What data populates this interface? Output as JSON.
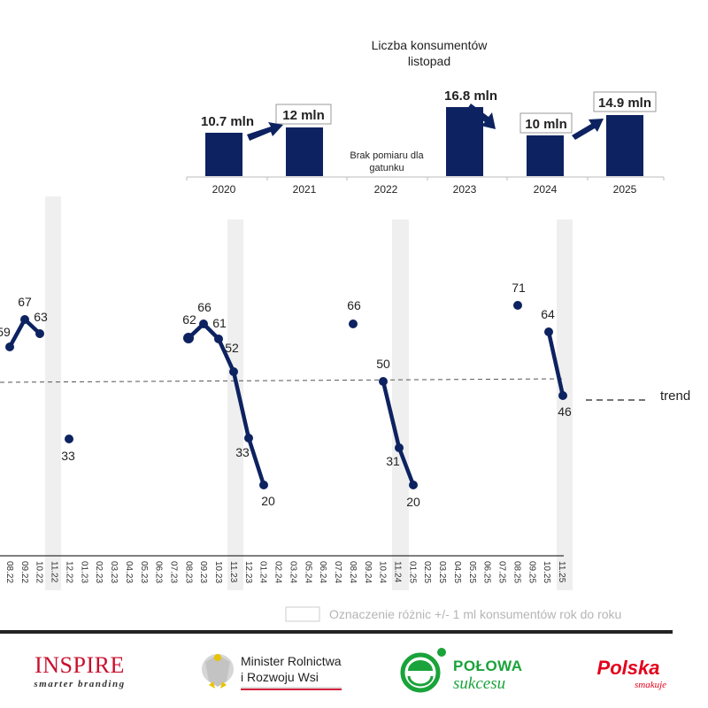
{
  "chart_data": [
    {
      "type": "bar",
      "title": "Liczba konsumentów",
      "subtitle": "listopad",
      "categories": [
        "2020",
        "2021",
        "2022",
        "2023",
        "2024",
        "2025"
      ],
      "values": [
        10.7,
        12,
        null,
        16.8,
        10,
        14.9
      ],
      "value_labels": [
        "10.7 mln",
        "12 mln",
        "",
        "16.8 mln",
        "10 mln",
        "14.9 mln"
      ],
      "boxed_labels": [
        false,
        true,
        false,
        false,
        true,
        true
      ],
      "annotations": [
        {
          "category": "2022",
          "text_line1": "Brak pomiaru dla",
          "text_line2": "gatunku"
        }
      ],
      "arrows": [
        {
          "from": "2020",
          "to": "2021",
          "direction": "up"
        },
        {
          "from": "2023",
          "to": "2024",
          "direction": "down"
        },
        {
          "from": "2024",
          "to": "2025",
          "direction": "up"
        }
      ],
      "unit": "mln",
      "xlabel": "",
      "ylabel": "",
      "bar_color": "#0d2260"
    },
    {
      "type": "line",
      "title": "",
      "x": [
        "08.22",
        "09.22",
        "10.22",
        "11.22",
        "12.22",
        "01.23",
        "02.23",
        "03.23",
        "04.23",
        "05.23",
        "06.23",
        "07.23",
        "08.23",
        "09.23",
        "10.23",
        "11.23",
        "12.23",
        "01.24",
        "02.24",
        "03.24",
        "05.24",
        "06.24",
        "07.24",
        "08.24",
        "09.24",
        "10.24",
        "11.24",
        "01.25",
        "02.25",
        "03.25",
        "04.25",
        "05.25",
        "06.25",
        "07.25",
        "08.25",
        "09.25",
        "10.25",
        "11.25"
      ],
      "series": [
        {
          "name": "konsumenci",
          "values": [
            59,
            67,
            63,
            null,
            33,
            null,
            null,
            null,
            null,
            null,
            null,
            null,
            62,
            66,
            61,
            52,
            33,
            20,
            null,
            null,
            null,
            null,
            null,
            66,
            null,
            50,
            31,
            20,
            null,
            null,
            null,
            null,
            null,
            null,
            71,
            null,
            64,
            46
          ]
        }
      ],
      "trend_line": {
        "label": "trend",
        "style": "dashed",
        "start_value": 50.5,
        "end_value": 51.5
      },
      "highlight_bands": [
        "11.22",
        "11.23",
        "11.24",
        "11.25"
      ],
      "legend": [
        {
          "label": "trend",
          "style": "dashed-line"
        },
        {
          "label": "Oznaczenie różnic +/- 1 ml konsumentów rok do roku",
          "style": "empty-box"
        }
      ],
      "grid": false,
      "line_color": "#0d2260"
    }
  ],
  "bar_chart": {
    "title": "Liczba konsumentów",
    "subtitle": "listopad",
    "years": [
      "2020",
      "2021",
      "2022",
      "2023",
      "2024",
      "2025"
    ],
    "labels": [
      "10.7 mln",
      "12 mln",
      "16.8 mln",
      "10 mln",
      "14.9 mln"
    ],
    "no_data_line1": "Brak pomiaru dla",
    "no_data_line2": "gatunku"
  },
  "line_chart": {
    "point_labels": [
      "59",
      "67",
      "63",
      "33",
      "62",
      "66",
      "61",
      "52",
      "33",
      "20",
      "66",
      "50",
      "31",
      "20",
      "71",
      "64",
      "46"
    ],
    "legend_trend": "trend",
    "legend_box": "Oznaczenie różnic +/- 1 ml konsumentów rok do roku"
  },
  "footer": {
    "logo1_main": "INSPIRE",
    "logo1_sub": "smarter branding",
    "logo2_line1": "Minister Rolnictwa",
    "logo2_line2": "i Rozwoju Wsi",
    "logo3_main": "POŁOWA",
    "logo3_sub": "sukcesu",
    "logo4_main": "Polska",
    "logo4_sub": "smakuje"
  },
  "colors": {
    "navy": "#0d2260",
    "band": "#efefef",
    "inspire_red": "#c8102e",
    "green": "#1aa33a",
    "polska_red": "#e3001b"
  }
}
